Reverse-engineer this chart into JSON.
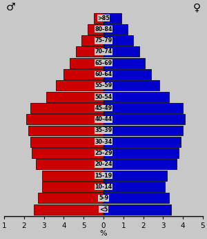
{
  "age_groups": [
    "<5",
    "5-9",
    "10-14",
    "15-19",
    "20-24",
    "25-29",
    "30-34",
    "35-39",
    "40-44",
    "45-49",
    "50-54",
    "55-59",
    "60-64",
    "65-69",
    "70-74",
    "75-79",
    "80-84",
    ">85"
  ],
  "male": [
    3.5,
    3.3,
    3.1,
    3.1,
    3.4,
    3.6,
    3.7,
    3.8,
    3.9,
    3.7,
    2.9,
    2.4,
    2.0,
    1.7,
    1.4,
    1.1,
    0.8,
    0.5
  ],
  "female": [
    3.4,
    3.3,
    3.1,
    3.2,
    3.7,
    3.8,
    3.9,
    4.0,
    4.1,
    4.0,
    3.3,
    2.8,
    2.4,
    2.1,
    1.8,
    1.5,
    1.2,
    0.9
  ],
  "male_color": "#cc0000",
  "female_color": "#0000cc",
  "bar_edge_color": "#000000",
  "background_color": "#c8c8c8",
  "male_symbol": "♂",
  "female_symbol": "♀",
  "xlabel": "%",
  "xlim": 5.0,
  "xticks": [
    0,
    1,
    2,
    3,
    4,
    5
  ],
  "label_fontsize": 5.8,
  "tick_fontsize": 7.5,
  "symbol_fontsize": 11
}
